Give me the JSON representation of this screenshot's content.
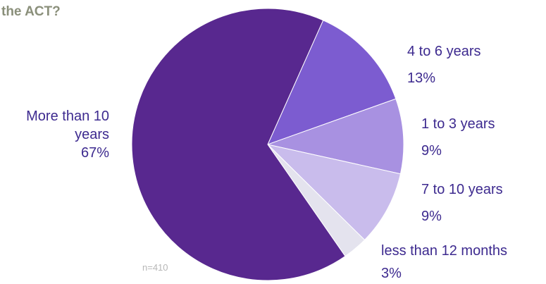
{
  "chart_data": {
    "type": "pie",
    "title": "the ACT?",
    "note": "n=410",
    "slices": [
      {
        "label": "More than 10 years",
        "value": 67,
        "value_label": "67%",
        "color": "#58288f"
      },
      {
        "label": "4 to 6 years",
        "value": 13,
        "value_label": "13%",
        "color": "#7c5cd0"
      },
      {
        "label": "1 to 3 years",
        "value": 9,
        "value_label": "9%",
        "color": "#a891e1"
      },
      {
        "label": "7 to 10 years",
        "value": 9,
        "value_label": "9%",
        "color": "#c9bcec"
      },
      {
        "label": "less than 12 months",
        "value": 3,
        "value_label": "3%",
        "color": "#e4e3ee"
      }
    ]
  },
  "labels": {
    "more_than_10_line1": "More than 10",
    "more_than_10_line2": "years",
    "more_than_10_pct": "67%",
    "y4_6": "4 to 6 years",
    "y4_6_pct": "13%",
    "y1_3": "1 to 3 years",
    "y1_3_pct": "9%",
    "y7_10": "7 to 10 years",
    "y7_10_pct": "9%",
    "lt12": "less than 12 months",
    "lt12_pct": "3%"
  }
}
